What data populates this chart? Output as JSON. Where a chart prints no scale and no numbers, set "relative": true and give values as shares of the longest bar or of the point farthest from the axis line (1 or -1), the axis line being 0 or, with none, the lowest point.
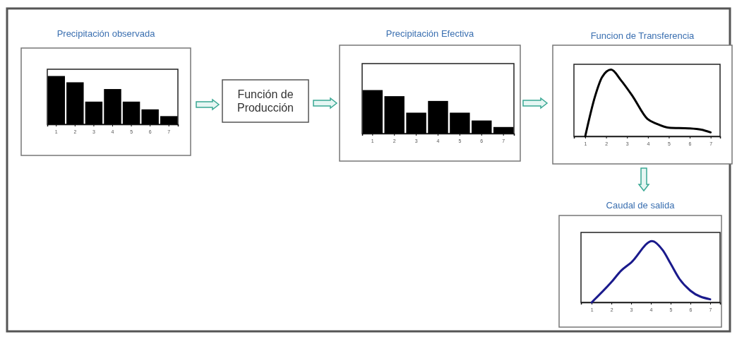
{
  "chart_data": [
    {
      "type": "bar",
      "title": "Precipitación observada",
      "categories": [
        "1",
        "2",
        "3",
        "4",
        "5",
        "6",
        "7"
      ],
      "values": [
        1,
        0.87,
        0.47,
        0.73,
        0.47,
        0.31,
        0.17
      ],
      "color": "#000000",
      "relative": true,
      "tick_labels": "x"
    },
    {
      "type": "other",
      "title": "Función de Producción"
    },
    {
      "type": "bar",
      "title": "Precipitación Efectiva",
      "categories": [
        "1",
        "2",
        "3",
        "4",
        "5",
        "6",
        "7"
      ],
      "values": [
        1,
        0.86,
        0.48,
        0.75,
        0.48,
        0.3,
        0.15
      ],
      "color": "#000000",
      "relative": true,
      "tick_labels": "x"
    },
    {
      "type": "line",
      "title": "Funcion de Transferencia",
      "x": [
        1,
        1.47,
        1.81,
        2.24,
        2.71,
        3.27,
        3.98,
        4.41,
        5,
        5.97,
        6.55,
        7
      ],
      "values": [
        0,
        0.6,
        0.89,
        1,
        0.84,
        0.6,
        0.26,
        0.19,
        0.13,
        0.12,
        0.1,
        0.06
      ],
      "color": "#000000",
      "xlim": [
        0.46,
        7.45
      ],
      "xticks": [
        1,
        2,
        3,
        4,
        5,
        6,
        7
      ],
      "relative": true,
      "tick_labels": "x"
    },
    {
      "type": "line",
      "title": "Caudal de salida",
      "x": [
        1,
        2,
        2.5,
        3,
        4.06,
        4.6,
        5,
        5.45,
        6,
        7
      ],
      "values": [
        0,
        0.33,
        0.52,
        0.65,
        1,
        0.85,
        0.63,
        0.38,
        0.19,
        0.05
      ],
      "color": "#1a1a8c",
      "xlim": [
        0.46,
        7.5
      ],
      "xticks": [
        1,
        2,
        3,
        4,
        5,
        6,
        7
      ],
      "relative": true,
      "tick_labels": "x"
    }
  ]
}
